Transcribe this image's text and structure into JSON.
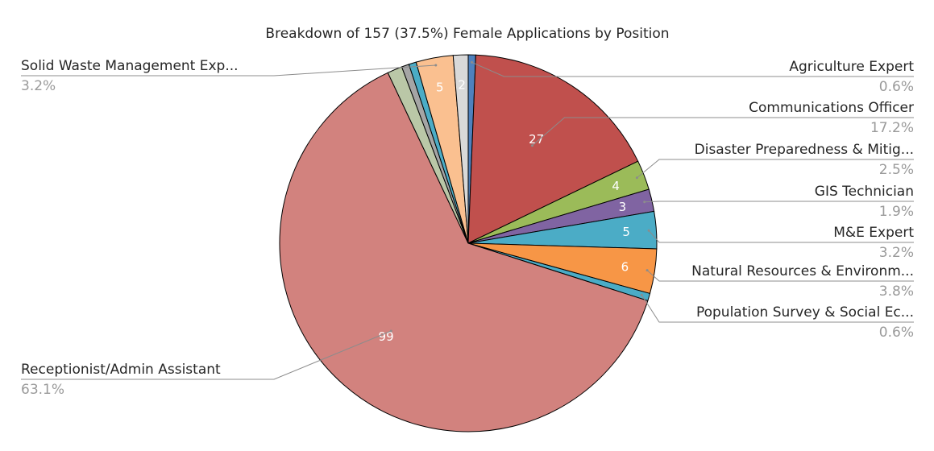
{
  "chart_data": {
    "type": "pie",
    "title": "Breakdown of 157 (37.5%) Female Applications by Position",
    "total": 157,
    "slices": [
      {
        "label": "Agriculture Expert",
        "value": 1,
        "percent": "0.6%",
        "color": "#4F81BD",
        "value_label": ""
      },
      {
        "label": "Communications Officer",
        "value": 27,
        "percent": "17.2%",
        "color": "#C0504D",
        "value_label": "27"
      },
      {
        "label": "Disaster Preparedness & Mitig...",
        "value": 4,
        "percent": "2.5%",
        "color": "#9BBB59",
        "value_label": "4"
      },
      {
        "label": "GIS Technician",
        "value": 3,
        "percent": "1.9%",
        "color": "#8064A2",
        "value_label": "3"
      },
      {
        "label": "M&E Expert",
        "value": 5,
        "percent": "3.2%",
        "color": "#4BACC6",
        "value_label": "5"
      },
      {
        "label": "Natural Resources & Environm...",
        "value": 6,
        "percent": "3.8%",
        "color": "#F79646",
        "value_label": "6"
      },
      {
        "label": "Population Survey & Social Ec...",
        "value": 1,
        "percent": "0.6%",
        "color": "#4BACC6",
        "value_label": ""
      },
      {
        "label": "Receptionist/Admin Assistant",
        "value": 99,
        "percent": "63.1%",
        "color": "#D2827E",
        "value_label": "99"
      },
      {
        "label": "",
        "value": 2,
        "percent": "",
        "color": "#BAC7A7",
        "value_label": ""
      },
      {
        "label": "",
        "value": 1,
        "percent": "",
        "color": "#A5A5A5",
        "value_label": ""
      },
      {
        "label": "",
        "value": 1,
        "percent": "",
        "color": "#4BACC6",
        "value_label": ""
      },
      {
        "label": "Solid Waste Management Exp...",
        "value": 5,
        "percent": "3.2%",
        "color": "#FAC090",
        "value_label": "5"
      },
      {
        "label": "",
        "value": 2,
        "percent": "",
        "color": "#D9D9D9",
        "value_label": "2"
      }
    ]
  }
}
